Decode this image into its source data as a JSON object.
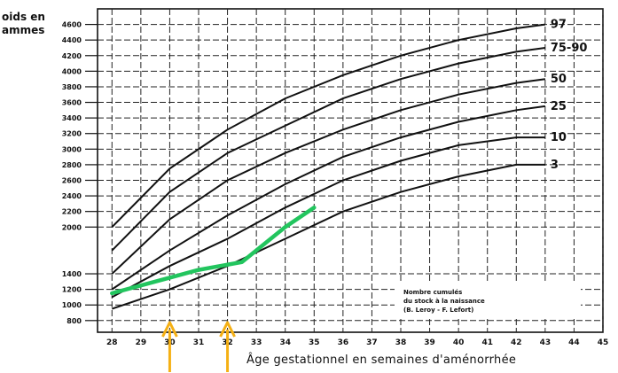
{
  "chart_data": {
    "type": "line",
    "ylabel_lines": [
      "oids en",
      "ammes"
    ],
    "xlabel": "Âge gestationnel en semaines d'aménorrhée",
    "x_ticks": [
      28,
      29,
      30,
      31,
      32,
      33,
      34,
      35,
      36,
      37,
      38,
      39,
      40,
      41,
      42,
      43,
      44,
      45
    ],
    "y_ticks": [
      {
        "value": 800,
        "label": "800"
      },
      {
        "value": 1000,
        "label": "1000"
      },
      {
        "value": 1200,
        "label": "1200"
      },
      {
        "value": 1400,
        "label": "1400"
      },
      {
        "value": 2000,
        "label": "2000"
      },
      {
        "value": 2200,
        "label": "2200"
      },
      {
        "value": 2400,
        "label": "2400"
      },
      {
        "value": 2600,
        "label": "2600"
      },
      {
        "value": 2800,
        "label": "2800"
      },
      {
        "value": 3000,
        "label": "3000"
      },
      {
        "value": 3200,
        "label": "3200"
      },
      {
        "value": 3400,
        "label": "3400"
      },
      {
        "value": 3600,
        "label": "3600"
      },
      {
        "value": 3800,
        "label": "3800"
      },
      {
        "value": 4000,
        "label": "4000"
      },
      {
        "value": 4200,
        "label": "4200"
      },
      {
        "value": 4400,
        "label": "4400"
      },
      {
        "value": 4600,
        "label": "4600"
      }
    ],
    "xlim": [
      27.5,
      45
    ],
    "ylim": [
      650,
      4800
    ],
    "grid": true,
    "series": [
      {
        "name": "97",
        "x": [
          28,
          30,
          32,
          34,
          36,
          38,
          40,
          42,
          43
        ],
        "y": [
          2000,
          2750,
          3250,
          3650,
          3950,
          4200,
          4400,
          4550,
          4600
        ]
      },
      {
        "name": "75-90",
        "x": [
          28,
          30,
          32,
          34,
          36,
          38,
          40,
          42,
          43
        ],
        "y": [
          1700,
          2450,
          2950,
          3300,
          3650,
          3900,
          4100,
          4250,
          4300
        ]
      },
      {
        "name": "50",
        "x": [
          28,
          30,
          32,
          34,
          36,
          38,
          40,
          42,
          43
        ],
        "y": [
          1400,
          2100,
          2600,
          2950,
          3250,
          3500,
          3700,
          3850,
          3900
        ]
      },
      {
        "name": "25",
        "x": [
          28,
          30,
          32,
          34,
          36,
          38,
          40,
          42,
          43
        ],
        "y": [
          1200,
          1700,
          2150,
          2550,
          2900,
          3150,
          3350,
          3500,
          3550
        ]
      },
      {
        "name": "10",
        "x": [
          28,
          30,
          32,
          34,
          36,
          38,
          40,
          42,
          43
        ],
        "y": [
          1100,
          1500,
          1850,
          2250,
          2600,
          2850,
          3050,
          3150,
          3150
        ]
      },
      {
        "name": "3",
        "x": [
          28,
          30,
          32,
          34,
          36,
          38,
          40,
          42,
          43
        ],
        "y": [
          950,
          1200,
          1500,
          1850,
          2200,
          2450,
          2650,
          2800,
          2800
        ]
      }
    ],
    "highlight": {
      "color": "#22c55e",
      "x": [
        28,
        29,
        30,
        31,
        32.5,
        34,
        35
      ],
      "y": [
        1150,
        1250,
        1350,
        1450,
        1550,
        2000,
        2250
      ]
    },
    "markers": {
      "color": "#f5b014",
      "x": [
        30,
        32
      ]
    },
    "legend_lines": [
      "Nombre cumulés",
      "du stock à la naissance",
      "(B. Leroy - F. Lefort)"
    ]
  }
}
